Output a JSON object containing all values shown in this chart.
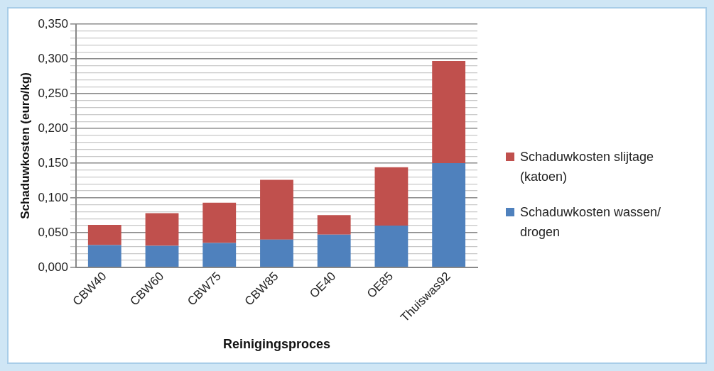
{
  "chart_data": {
    "type": "bar",
    "stacked": true,
    "xlabel": "Reinigingsproces",
    "ylabel": "Schaduwkosten (euro/kg)",
    "categories": [
      "CBW40",
      "CBW60",
      "CBW75",
      "CBW85",
      "OE40",
      "OE85",
      "Thuiswas92"
    ],
    "series": [
      {
        "name": "Schaduwkosten wassen/ drogen",
        "color": "#4f81bd",
        "values": [
          0.032,
          0.031,
          0.035,
          0.04,
          0.047,
          0.06,
          0.15
        ]
      },
      {
        "name": "Schaduwkosten slijtage (katoen)",
        "color": "#c0504d",
        "values": [
          0.029,
          0.047,
          0.058,
          0.086,
          0.028,
          0.084,
          0.147
        ]
      }
    ],
    "ylim": [
      0,
      0.35
    ],
    "yticks": [
      {
        "value": 0,
        "label": "0,000"
      },
      {
        "value": 0.01,
        "label": null
      },
      {
        "value": 0.02,
        "label": null
      },
      {
        "value": 0.03,
        "label": null
      },
      {
        "value": 0.04,
        "label": null
      },
      {
        "value": 0.05,
        "label": "0,050"
      },
      {
        "value": 0.06,
        "label": null
      },
      {
        "value": 0.07,
        "label": null
      },
      {
        "value": 0.08,
        "label": null
      },
      {
        "value": 0.09,
        "label": null
      },
      {
        "value": 0.1,
        "label": "0,100"
      },
      {
        "value": 0.11,
        "label": null
      },
      {
        "value": 0.12,
        "label": null
      },
      {
        "value": 0.13,
        "label": null
      },
      {
        "value": 0.14,
        "label": null
      },
      {
        "value": 0.15,
        "label": "0,150"
      },
      {
        "value": 0.16,
        "label": null
      },
      {
        "value": 0.17,
        "label": null
      },
      {
        "value": 0.18,
        "label": null
      },
      {
        "value": 0.19,
        "label": null
      },
      {
        "value": 0.2,
        "label": "0,200"
      },
      {
        "value": 0.21,
        "label": null
      },
      {
        "value": 0.22,
        "label": null
      },
      {
        "value": 0.23,
        "label": null
      },
      {
        "value": 0.24,
        "label": null
      },
      {
        "value": 0.25,
        "label": "0,250"
      },
      {
        "value": 0.26,
        "label": null
      },
      {
        "value": 0.27,
        "label": null
      },
      {
        "value": 0.28,
        "label": null
      },
      {
        "value": 0.29,
        "label": null
      },
      {
        "value": 0.3,
        "label": "0,300"
      },
      {
        "value": 0.31,
        "label": null
      },
      {
        "value": 0.32,
        "label": null
      },
      {
        "value": 0.33,
        "label": null
      },
      {
        "value": 0.34,
        "label": null
      },
      {
        "value": 0.35,
        "label": "0,350"
      }
    ],
    "grid": "y",
    "legend": "right"
  }
}
